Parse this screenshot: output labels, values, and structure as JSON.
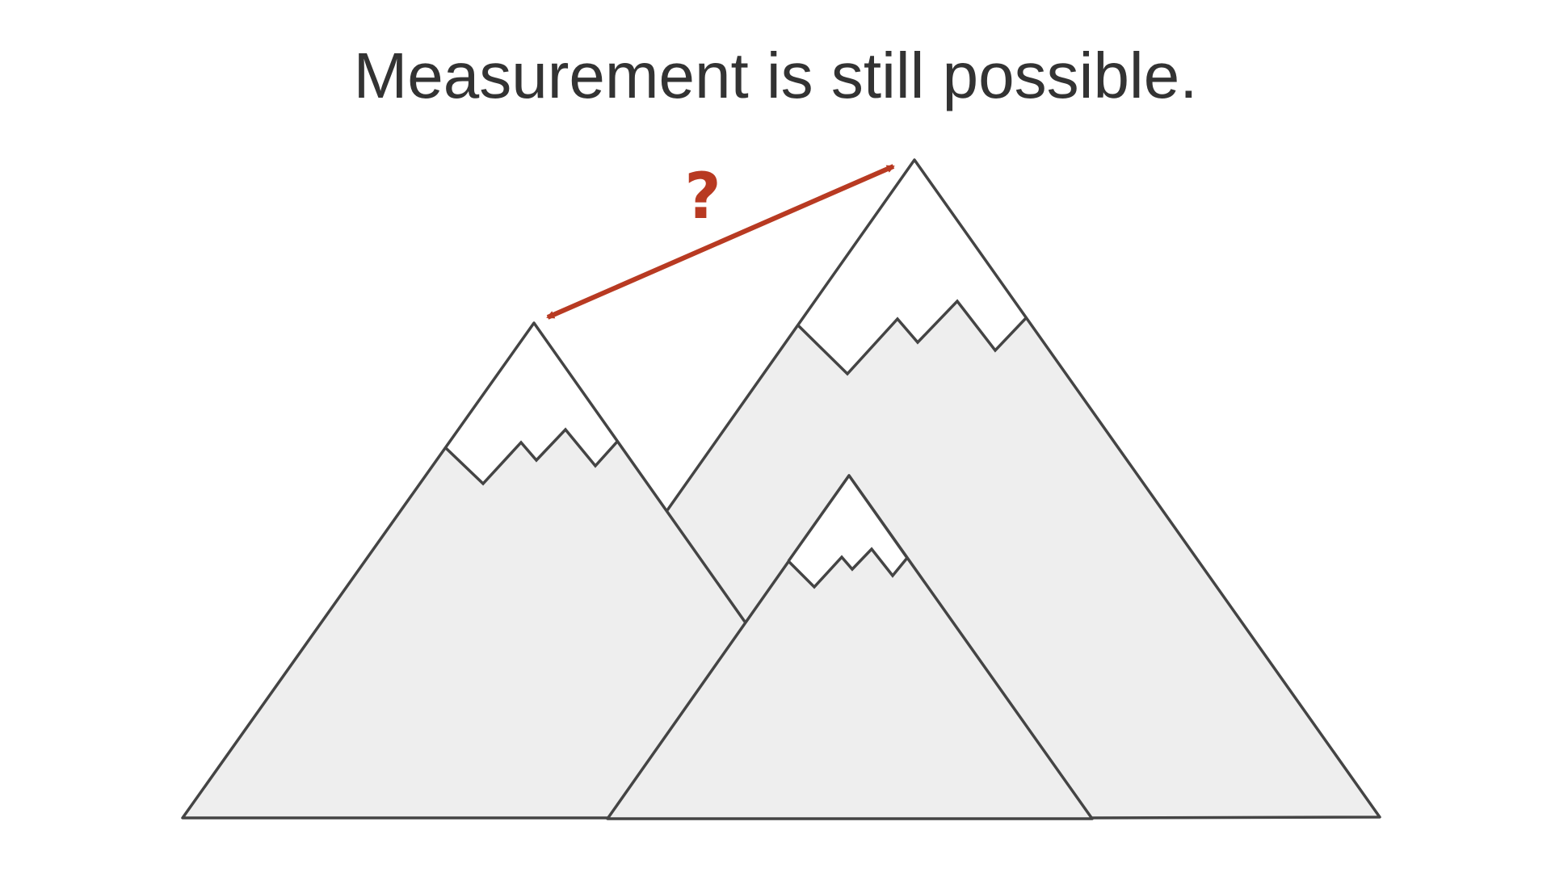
{
  "slide": {
    "title": "Measurement is still possible."
  },
  "diagram": {
    "question_label": "?",
    "colors": {
      "outline": "#444444",
      "mountain_fill": "#eeeeee",
      "snow_fill": "#ffffff",
      "arrow": "#b83a22"
    }
  }
}
